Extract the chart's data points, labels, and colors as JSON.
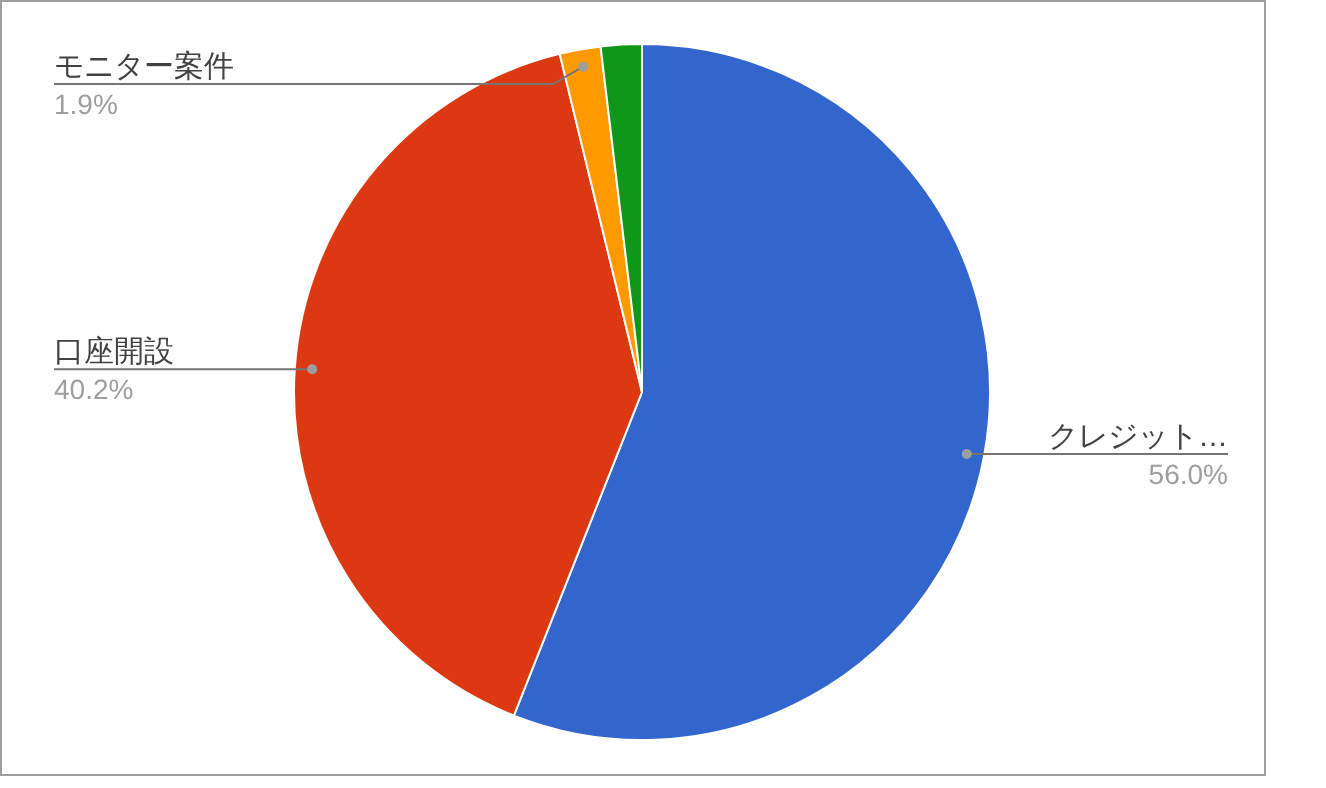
{
  "chart_data": {
    "type": "pie",
    "categories": [
      "クレジット…",
      "口座開設",
      "モニター案件",
      null
    ],
    "values": [
      56.0,
      40.2,
      1.9,
      1.9
    ],
    "value_labels": [
      "56.0%",
      "40.2%",
      "1.9%",
      null
    ],
    "colors": [
      "#3366cc",
      "#dc3912",
      "#ff9900",
      "#109618"
    ],
    "legend": false
  }
}
